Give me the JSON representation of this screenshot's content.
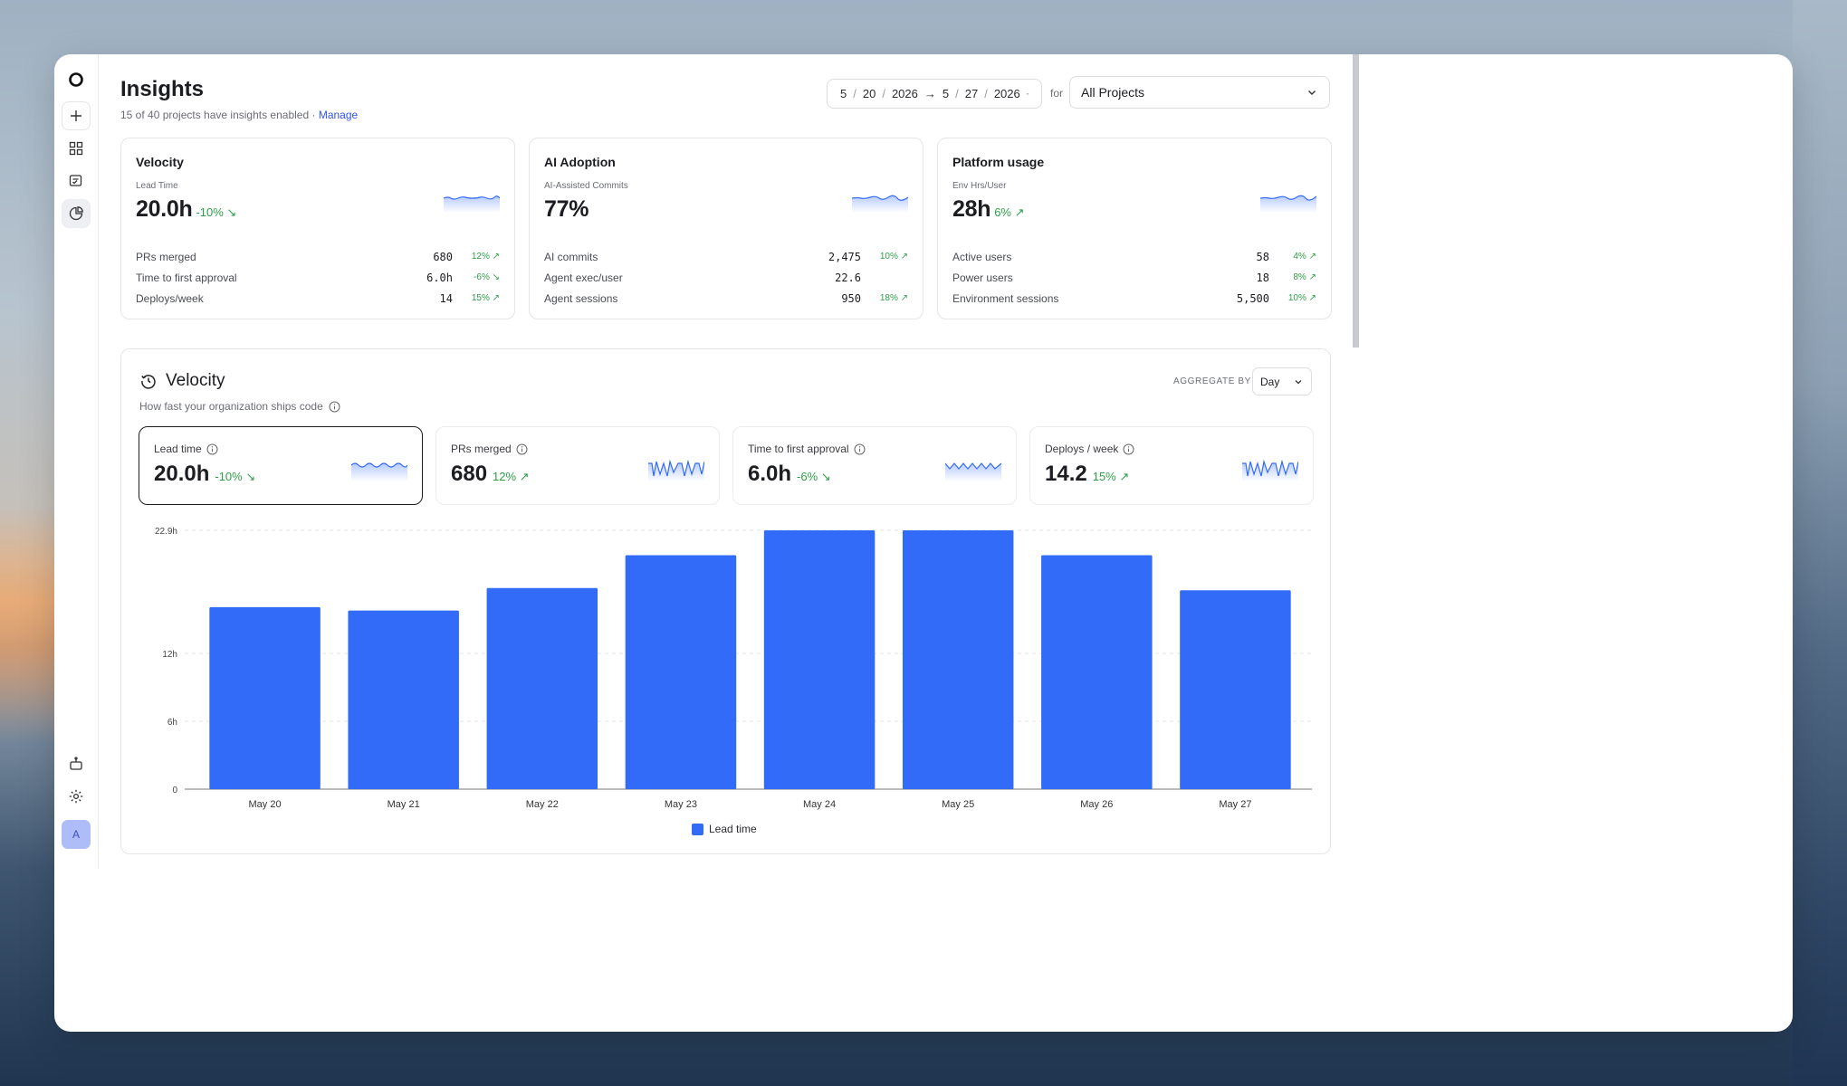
{
  "header": {
    "title": "Insights",
    "subtitle": "15 of 40 projects have insights enabled ·",
    "manage_link": "Manage",
    "date_range": {
      "start_m": "5",
      "start_d": "20",
      "start_y": "2026",
      "end_m": "5",
      "end_d": "27",
      "end_y": "2026",
      "sep": "/",
      "arrow": "→"
    },
    "for_label": "for",
    "project_select": "All Projects"
  },
  "sidebar": {
    "items": [
      "logo-icon",
      "plus-icon",
      "grid-icon",
      "review-icon",
      "insights-icon",
      "bot-icon",
      "gear-icon"
    ],
    "avatar": "A"
  },
  "summary_cards": [
    {
      "title": "Velocity",
      "metric_label": "Lead Time",
      "value": "20.0h",
      "delta": "-10%",
      "delta_dir": "down",
      "rows": [
        {
          "label": "PRs merged",
          "value": "680",
          "change": "12% ↗"
        },
        {
          "label": "Time to first approval",
          "value": "6.0h",
          "change": "-6% ↘"
        },
        {
          "label": "Deploys/week",
          "value": "14",
          "change": "15% ↗"
        }
      ]
    },
    {
      "title": "AI Adoption",
      "metric_label": "AI-Assisted Commits",
      "value": "77%",
      "delta": "",
      "delta_dir": "",
      "rows": [
        {
          "label": "AI commits",
          "value": "2,475",
          "change": "10% ↗"
        },
        {
          "label": "Agent exec/user",
          "value": "22.6",
          "change": ""
        },
        {
          "label": "Agent sessions",
          "value": "950",
          "change": "18% ↗"
        }
      ]
    },
    {
      "title": "Platform usage",
      "metric_label": "Env Hrs/User",
      "value": "28h",
      "delta": "6% ↗",
      "delta_dir": "up",
      "rows": [
        {
          "label": "Active users",
          "value": "58",
          "change": "4% ↗"
        },
        {
          "label": "Power users",
          "value": "18",
          "change": "8% ↗"
        },
        {
          "label": "Environment sessions",
          "value": "5,500",
          "change": "10% ↗"
        }
      ]
    }
  ],
  "velocity_panel": {
    "title": "Velocity",
    "subtitle": "How fast your organization ships code",
    "aggregate_label": "AGGREGATE BY",
    "aggregate_value": "Day",
    "metrics": [
      {
        "label": "Lead time",
        "value": "20.0h",
        "delta": "-10% ↘",
        "selected": true
      },
      {
        "label": "PRs merged",
        "value": "680",
        "delta": "12% ↗",
        "selected": false
      },
      {
        "label": "Time to first approval",
        "value": "6.0h",
        "delta": "-6% ↘",
        "selected": false
      },
      {
        "label": "Deploys / week",
        "value": "14.2",
        "delta": "15% ↗",
        "selected": false
      }
    ],
    "legend_label": "Lead time"
  },
  "colors": {
    "accent": "#326bf8",
    "positive": "#2e9d48",
    "link": "#2f54eb"
  },
  "chart_data": {
    "type": "bar",
    "categories": [
      "May 20",
      "May 21",
      "May 22",
      "May 23",
      "May 24",
      "May 25",
      "May 26",
      "May 27"
    ],
    "series": [
      {
        "name": "Lead time",
        "values": [
          16.1,
          15.8,
          17.8,
          20.7,
          22.9,
          22.9,
          20.7,
          17.6
        ]
      }
    ],
    "y_ticks": [
      "0",
      "6h",
      "12h",
      "22.9h"
    ],
    "y_tick_values": [
      0,
      6,
      12,
      22.9
    ],
    "ylim": [
      0,
      22.9
    ],
    "grid": true
  }
}
